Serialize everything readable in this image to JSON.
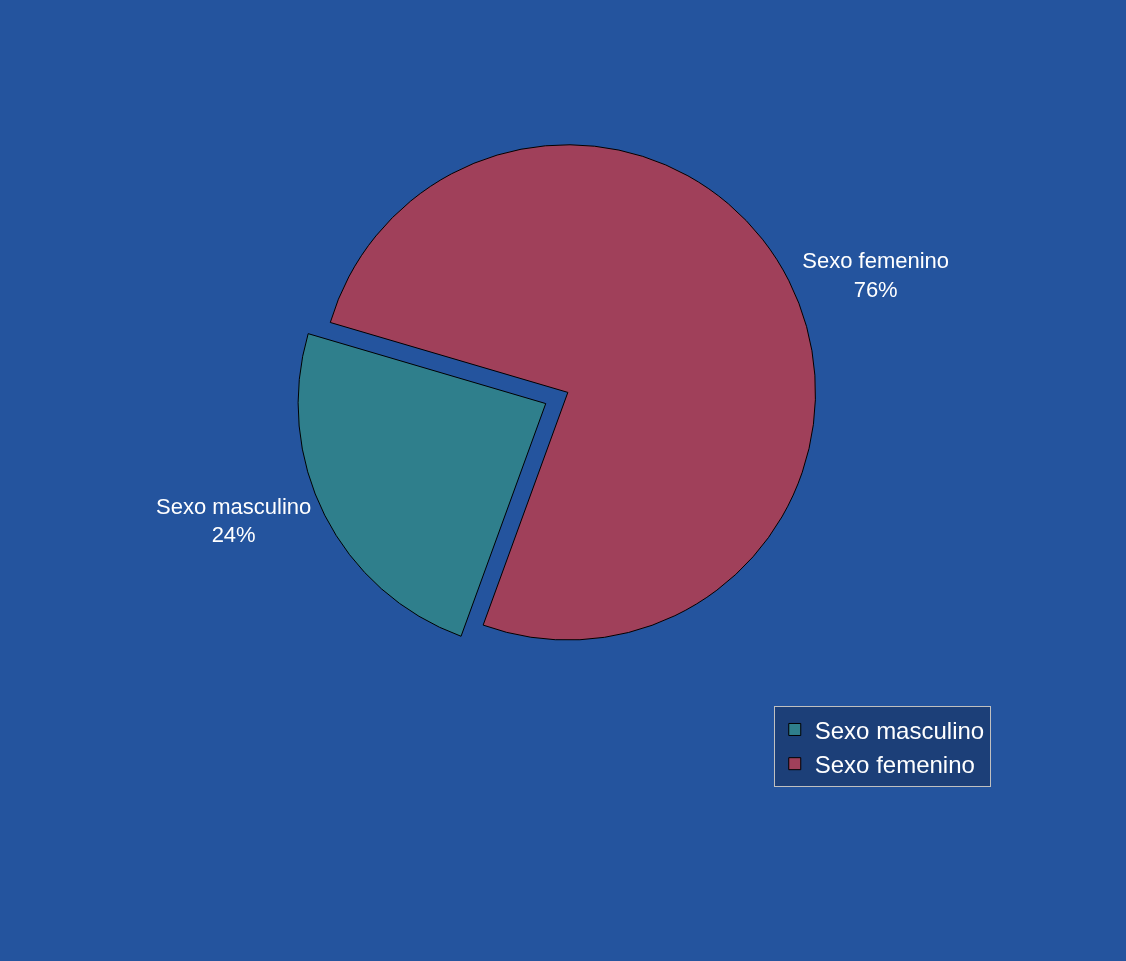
{
  "chart_data": {
    "type": "pie",
    "categories": [
      "Sexo masculino",
      "Sexo femenino"
    ],
    "values": [
      24,
      76
    ],
    "value_labels": [
      "24%",
      "76%"
    ],
    "colors": [
      "#2f7f8c",
      "#a0405a"
    ],
    "legend": "bottom right"
  }
}
